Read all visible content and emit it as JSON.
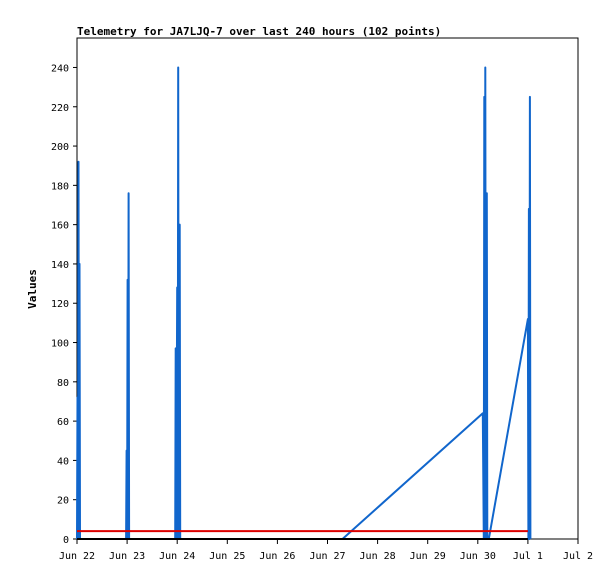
{
  "chart_data": {
    "type": "line",
    "title": "Telemetry for JA7LJQ-7 over last 240 hours (102 points)",
    "xlabel": "",
    "ylabel": "Values",
    "x_ticks": [
      "Jun 22",
      "Jun 23",
      "Jun 24",
      "Jun 25",
      "Jun 26",
      "Jun 27",
      "Jun 28",
      "Jun 29",
      "Jun 30",
      "Jul 1",
      "Jul 2"
    ],
    "x_unit": "days since Jun 22",
    "xlim": [
      0,
      10
    ],
    "ylim": [
      0,
      255
    ],
    "y_ticks": [
      0,
      20,
      40,
      60,
      80,
      100,
      120,
      140,
      160,
      180,
      200,
      220,
      240
    ],
    "grid": false,
    "series": [
      {
        "name": "",
        "color": "#1166cc",
        "points": [
          [
            0.0,
            0
          ],
          [
            0.01,
            72
          ],
          [
            0.02,
            0
          ],
          [
            0.03,
            192
          ],
          [
            0.04,
            0
          ],
          [
            0.05,
            140
          ],
          [
            0.06,
            0
          ],
          [
            0.98,
            0
          ],
          [
            0.99,
            45
          ],
          [
            1.0,
            0
          ],
          [
            1.01,
            132
          ],
          [
            1.02,
            0
          ],
          [
            1.03,
            176
          ],
          [
            1.04,
            0
          ],
          [
            1.96,
            0
          ],
          [
            1.97,
            97
          ],
          [
            1.98,
            0
          ],
          [
            2.0,
            128
          ],
          [
            2.01,
            0
          ],
          [
            2.02,
            240
          ],
          [
            2.03,
            0
          ],
          [
            2.05,
            160
          ],
          [
            2.06,
            0
          ],
          [
            5.3,
            0
          ],
          [
            8.1,
            64
          ],
          [
            8.12,
            0
          ],
          [
            8.13,
            225
          ],
          [
            8.14,
            0
          ],
          [
            8.15,
            240
          ],
          [
            8.16,
            0
          ],
          [
            8.18,
            176
          ],
          [
            8.19,
            0
          ],
          [
            8.22,
            0
          ],
          [
            9.0,
            112
          ],
          [
            9.01,
            0
          ],
          [
            9.02,
            168
          ],
          [
            9.03,
            0
          ],
          [
            9.04,
            225
          ],
          [
            9.05,
            0
          ]
        ]
      },
      {
        "name": "",
        "color": "#dd0000",
        "points": [
          [
            0.0,
            4
          ],
          [
            9.0,
            4
          ]
        ]
      },
      {
        "name": "",
        "color": "#000000",
        "points": [
          [
            0.0,
            0
          ],
          [
            9.0,
            0
          ]
        ]
      }
    ]
  }
}
